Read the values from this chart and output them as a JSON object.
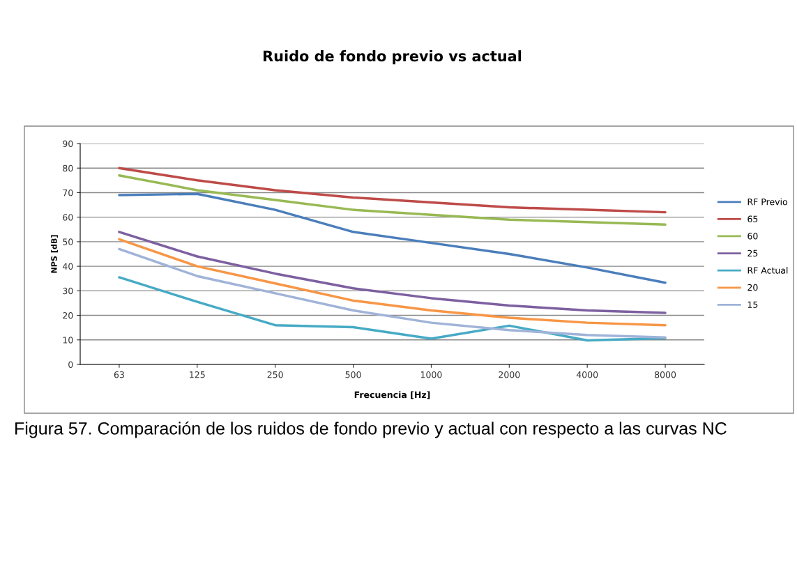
{
  "chart_data": {
    "type": "line",
    "title": "Ruido de fondo previo vs actual",
    "xlabel": "Frecuencia [Hz]",
    "ylabel": "NPS [dB]",
    "categories": [
      "63",
      "125",
      "250",
      "500",
      "1000",
      "2000",
      "4000",
      "8000"
    ],
    "series": [
      {
        "name": "RF Previo",
        "color": "#4a7ebb",
        "values": [
          69,
          69.5,
          63,
          54,
          49.5,
          45,
          39.5,
          33.3
        ]
      },
      {
        "name": "65",
        "color": "#be4b48",
        "values": [
          80,
          75,
          71,
          68,
          66,
          64,
          63,
          62
        ]
      },
      {
        "name": "60",
        "color": "#98b954",
        "values": [
          77,
          71,
          67,
          63,
          61,
          59,
          58,
          57
        ]
      },
      {
        "name": "25",
        "color": "#7d60a0",
        "values": [
          54,
          44,
          37,
          31,
          27,
          24,
          22,
          21
        ]
      },
      {
        "name": "RF Actual",
        "color": "#46aac5",
        "values": [
          35.5,
          25.5,
          16,
          15.2,
          10.5,
          15.8,
          9.8,
          10.7
        ]
      },
      {
        "name": "20",
        "color": "#f79646",
        "values": [
          51,
          40,
          33,
          26,
          22,
          19,
          17,
          16
        ]
      },
      {
        "name": "15",
        "color": "#a0b3d8",
        "values": [
          47,
          36,
          29,
          22,
          17,
          14,
          12,
          11
        ]
      }
    ],
    "ylim": [
      0,
      90
    ],
    "yticks": [
      0,
      10,
      20,
      30,
      40,
      50,
      60,
      70,
      80,
      90
    ],
    "grid": "y",
    "legend": "right",
    "marker": "none",
    "line_style": "solid",
    "annotations": [
      "Figura 57. Comparación de los ruidos de fondo previo y actual con respecto a las curvas NC"
    ]
  }
}
